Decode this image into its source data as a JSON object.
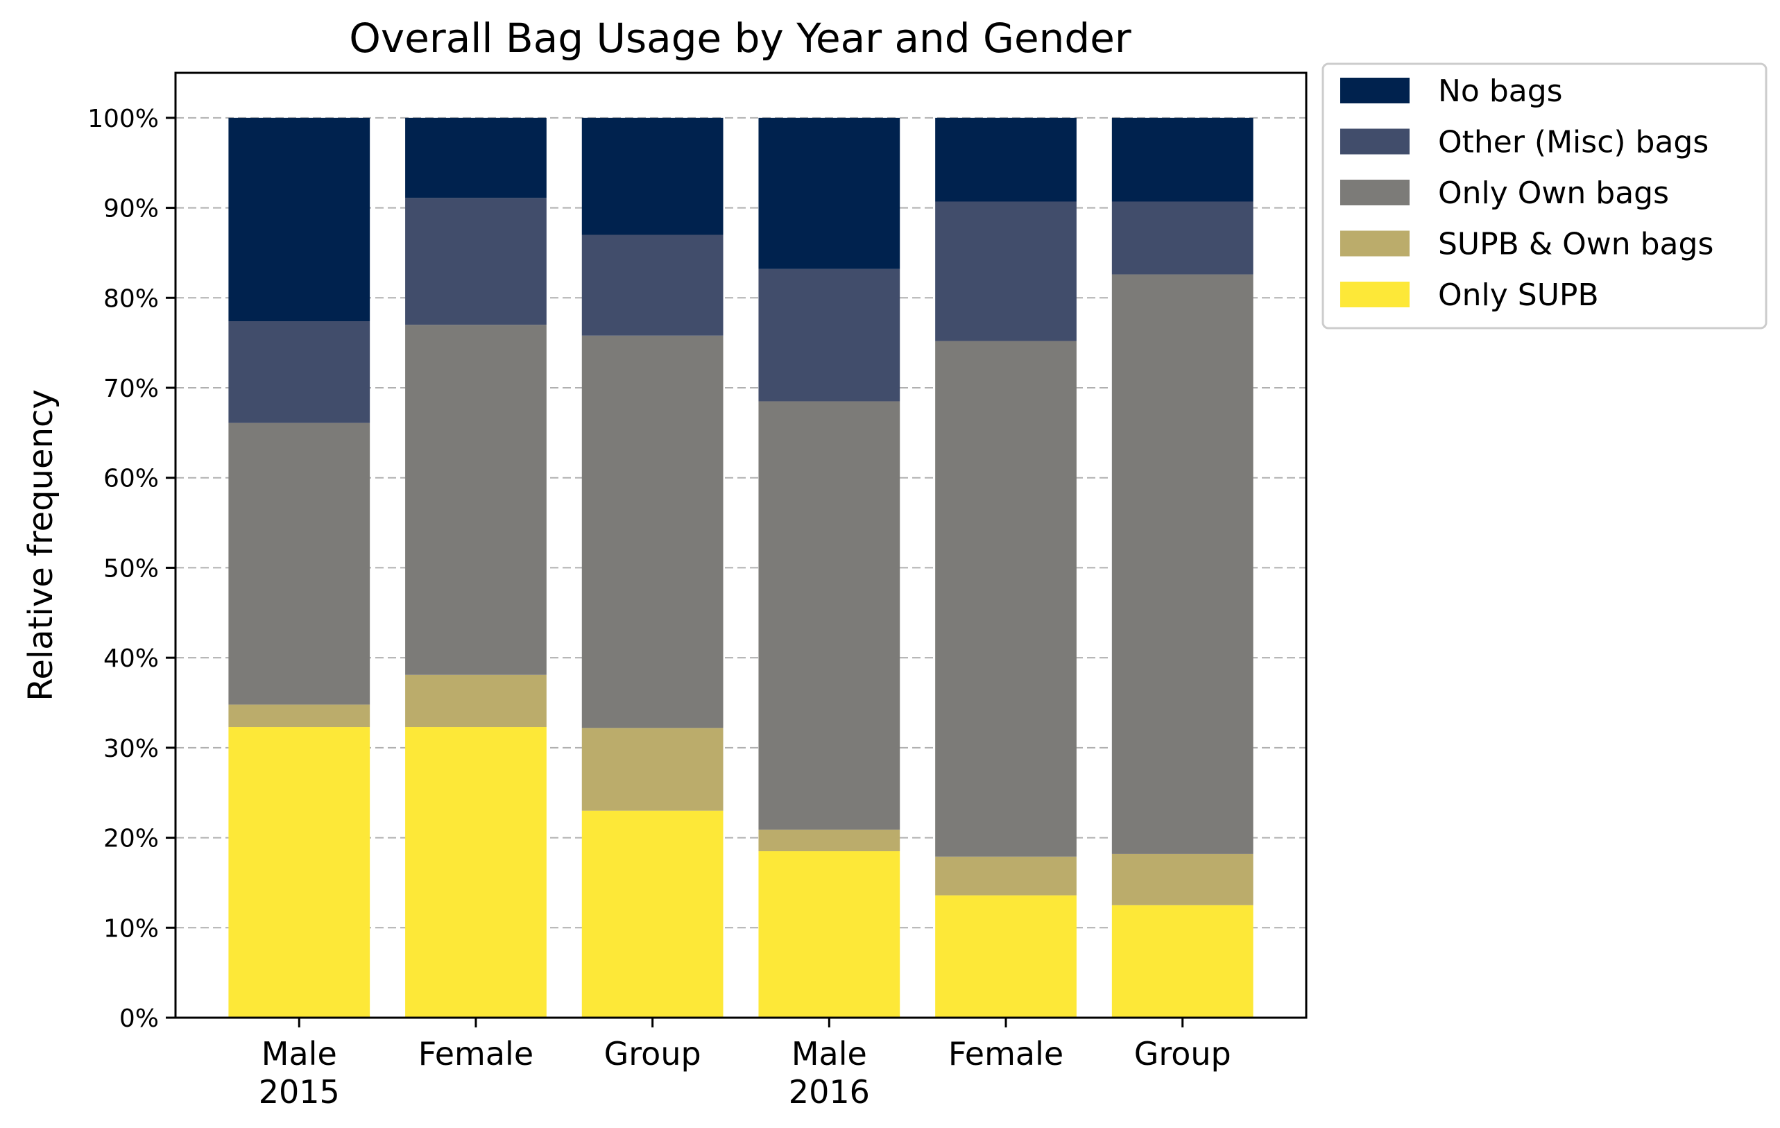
{
  "chart_data": {
    "type": "bar",
    "stacked": true,
    "title": "Overall Bag Usage by Year and Gender",
    "xlabel": "",
    "ylabel": "Relative frequency",
    "ylim": [
      0,
      105
    ],
    "yticks": [
      0,
      10,
      20,
      30,
      40,
      50,
      60,
      70,
      80,
      90,
      100
    ],
    "ytick_labels": [
      "0%",
      "10%",
      "20%",
      "30%",
      "40%",
      "50%",
      "60%",
      "70%",
      "80%",
      "90%",
      "100%"
    ],
    "grid": "horizontal dashed",
    "legend_position": "outside-top-right",
    "categories": [
      "Male",
      "Female",
      "Group",
      "Male",
      "Female",
      "Group"
    ],
    "category_groups": [
      "2015",
      "",
      "",
      "2016",
      "",
      ""
    ],
    "series": [
      {
        "name": "Only SUPB",
        "color": "#fde838",
        "values": [
          32.3,
          32.3,
          23.0,
          18.5,
          13.6,
          12.5
        ]
      },
      {
        "name": "SUPB & Own bags",
        "color": "#bbac6b",
        "values": [
          2.5,
          5.8,
          9.2,
          2.4,
          4.3,
          5.7
        ]
      },
      {
        "name": "Only Own bags",
        "color": "#7c7b78",
        "values": [
          31.3,
          38.9,
          43.6,
          47.6,
          57.3,
          64.4
        ]
      },
      {
        "name": "Other (Misc) bags",
        "color": "#414d6b",
        "values": [
          11.3,
          14.1,
          11.2,
          14.7,
          15.5,
          8.1
        ]
      },
      {
        "name": "No bags",
        "color": "#00224e",
        "values": [
          22.6,
          8.9,
          13.0,
          16.8,
          9.3,
          9.3
        ]
      }
    ]
  }
}
